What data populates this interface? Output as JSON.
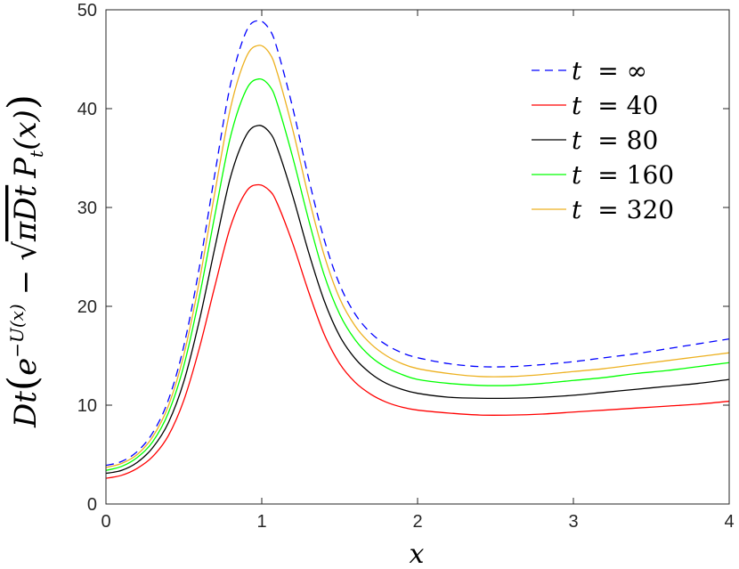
{
  "chart_data": {
    "type": "line",
    "xlabel": "x",
    "ylabel_parts": {
      "prefix": "Dt",
      "exp_base": "e",
      "exp_power": "−U(x)",
      "minus": "−",
      "sqrt_arg": "πDt",
      "p": "P",
      "p_sub": "t",
      "p_arg": "(x)"
    },
    "xlim": [
      0,
      4
    ],
    "ylim": [
      0,
      50
    ],
    "xticks": [
      0,
      1,
      2,
      3,
      4
    ],
    "yticks": [
      0,
      10,
      20,
      30,
      40,
      50
    ],
    "grid": false,
    "legend_position": "top-right",
    "x": [
      0,
      0.1,
      0.2,
      0.3,
      0.4,
      0.5,
      0.6,
      0.7,
      0.8,
      0.9,
      0.98,
      1.05,
      1.1,
      1.2,
      1.3,
      1.4,
      1.5,
      1.6,
      1.7,
      1.8,
      1.9,
      2.0,
      2.2,
      2.4,
      2.6,
      2.8,
      3.0,
      3.2,
      3.4,
      3.6,
      3.8,
      4.0
    ],
    "series": [
      {
        "name": "t  = ∞",
        "label_left": "t",
        "label_right": "= ∞",
        "color": "#0000ff",
        "dash": "9,6",
        "values": [
          3.9,
          4.3,
          5.3,
          7.2,
          10.5,
          16.0,
          24.0,
          33.5,
          42.5,
          47.8,
          48.9,
          48.0,
          46.0,
          40.0,
          33.0,
          26.8,
          22.2,
          19.2,
          17.3,
          16.1,
          15.3,
          14.8,
          14.2,
          13.9,
          13.9,
          14.1,
          14.4,
          14.8,
          15.2,
          15.7,
          16.2,
          16.7
        ]
      },
      {
        "name": "t  =  40",
        "label_left": "t",
        "label_right": "=  40",
        "color": "#ff0000",
        "dash": "",
        "values": [
          2.6,
          2.9,
          3.6,
          4.8,
          6.9,
          10.5,
          15.8,
          22.1,
          28.1,
          31.6,
          32.3,
          31.7,
          30.4,
          26.3,
          21.5,
          17.2,
          14.2,
          12.3,
          11.1,
          10.3,
          9.8,
          9.5,
          9.2,
          9.0,
          9.0,
          9.1,
          9.3,
          9.5,
          9.7,
          9.9,
          10.1,
          10.4
        ]
      },
      {
        "name": "t  =  80",
        "label_left": "t",
        "label_right": "=  80",
        "color": "#000000",
        "dash": "",
        "values": [
          3.1,
          3.4,
          4.2,
          5.7,
          8.2,
          12.4,
          18.6,
          26.0,
          33.1,
          37.3,
          38.3,
          37.6,
          36.0,
          31.1,
          25.5,
          20.6,
          17.0,
          14.7,
          13.2,
          12.2,
          11.6,
          11.2,
          10.8,
          10.7,
          10.7,
          10.8,
          11.0,
          11.3,
          11.6,
          11.9,
          12.2,
          12.6
        ]
      },
      {
        "name": "t  =  160",
        "label_left": "t",
        "label_right": "=  160",
        "color": "#00ff00",
        "dash": "",
        "values": [
          3.4,
          3.8,
          4.7,
          6.3,
          9.2,
          14.0,
          21.0,
          29.3,
          37.2,
          41.9,
          43.0,
          42.3,
          40.5,
          35.0,
          28.8,
          23.2,
          19.2,
          16.6,
          14.9,
          13.8,
          13.1,
          12.6,
          12.2,
          12.0,
          12.0,
          12.2,
          12.5,
          12.8,
          13.2,
          13.5,
          13.9,
          14.3
        ]
      },
      {
        "name": "t  =  320",
        "label_left": "t",
        "label_right": "=  320",
        "color": "#edb120",
        "dash": "",
        "values": [
          3.7,
          4.1,
          5.0,
          6.8,
          9.9,
          15.1,
          22.6,
          31.6,
          40.1,
          45.2,
          46.4,
          45.6,
          43.6,
          37.8,
          31.1,
          25.2,
          20.8,
          18.0,
          16.2,
          15.0,
          14.2,
          13.7,
          13.2,
          12.9,
          12.9,
          13.1,
          13.4,
          13.7,
          14.1,
          14.5,
          14.9,
          15.3
        ]
      }
    ]
  }
}
